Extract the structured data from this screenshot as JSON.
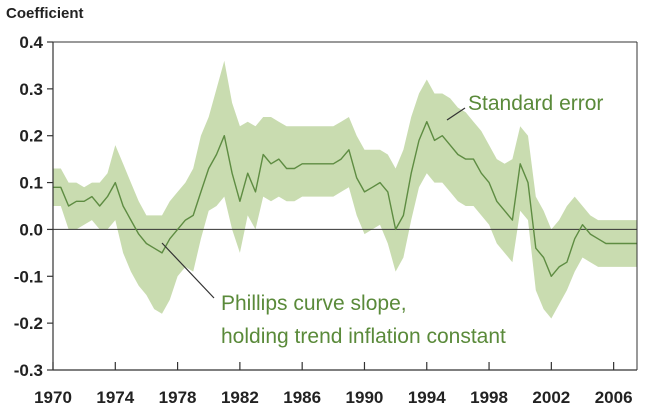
{
  "chart_data": {
    "type": "area",
    "ylabel": "Coefficient",
    "xlabel": "",
    "xlim": [
      1970,
      2007.5
    ],
    "ylim": [
      -0.3,
      0.4
    ],
    "x_ticks": [
      1970,
      1974,
      1978,
      1982,
      1986,
      1990,
      1994,
      1998,
      2002,
      2006
    ],
    "y_ticks": [
      0.4,
      0.3,
      0.2,
      0.1,
      0.0,
      -0.1,
      -0.2,
      -0.3
    ],
    "y_tick_labels": [
      "0.4",
      "0.3",
      "0.2",
      "0.1",
      "0.0",
      "-0.1",
      "-0.2",
      "-0.3"
    ],
    "grid": false,
    "zero_line": true,
    "colors": {
      "band": "#c9dcb0",
      "line": "#5e8c42",
      "annotation": "#5a8a3a",
      "axis": "#333333"
    },
    "annotations": [
      {
        "text": "Standard error",
        "target": "band"
      },
      {
        "text": "Phillips curve slope,",
        "target": "line"
      },
      {
        "text": "holding trend inflation constant",
        "target": "line"
      }
    ],
    "series": [
      {
        "x": [
          1970,
          1970.5,
          1971,
          1971.5,
          1972,
          1972.5,
          1973,
          1973.5,
          1974,
          1974.5,
          1975,
          1975.5,
          1976,
          1976.5,
          1977,
          1977.5,
          1978,
          1978.5,
          1979,
          1979.5,
          1980,
          1980.5,
          1981,
          1981.5,
          1982,
          1982.5,
          1983,
          1983.5,
          1984,
          1984.5,
          1985,
          1985.5,
          1986,
          1986.5,
          1987,
          1987.5,
          1988,
          1988.5,
          1989,
          1989.5,
          1990,
          1990.5,
          1991,
          1991.5,
          1992,
          1992.5,
          1993,
          1993.5,
          1994,
          1994.5,
          1995,
          1995.5,
          1996,
          1996.5,
          1997,
          1997.5,
          1998,
          1998.5,
          1999,
          1999.5,
          2000,
          2000.5,
          2001,
          2001.5,
          2002,
          2002.5,
          2003,
          2003.5,
          2004,
          2004.5,
          2005,
          2005.5,
          2006,
          2006.5,
          2007,
          2007.5
        ],
        "values": [
          0.09,
          0.09,
          0.05,
          0.06,
          0.06,
          0.07,
          0.05,
          0.07,
          0.1,
          0.05,
          0.02,
          -0.01,
          -0.03,
          -0.04,
          -0.05,
          -0.02,
          0.0,
          0.02,
          0.03,
          0.08,
          0.13,
          0.16,
          0.2,
          0.12,
          0.06,
          0.12,
          0.08,
          0.16,
          0.14,
          0.15,
          0.13,
          0.13,
          0.14,
          0.14,
          0.14,
          0.14,
          0.14,
          0.15,
          0.17,
          0.11,
          0.08,
          0.09,
          0.1,
          0.08,
          0.0,
          0.03,
          0.12,
          0.19,
          0.23,
          0.19,
          0.2,
          0.18,
          0.16,
          0.15,
          0.15,
          0.12,
          0.1,
          0.06,
          0.04,
          0.02,
          0.14,
          0.1,
          -0.04,
          -0.06,
          -0.1,
          -0.08,
          -0.07,
          -0.02,
          0.01,
          -0.01,
          -0.02,
          -0.03,
          -0.03,
          -0.03,
          -0.03,
          -0.03
        ],
        "upper": [
          0.13,
          0.13,
          0.1,
          0.1,
          0.09,
          0.1,
          0.1,
          0.12,
          0.18,
          0.14,
          0.1,
          0.06,
          0.03,
          0.03,
          0.03,
          0.06,
          0.08,
          0.1,
          0.13,
          0.2,
          0.24,
          0.3,
          0.36,
          0.27,
          0.22,
          0.23,
          0.22,
          0.24,
          0.24,
          0.23,
          0.22,
          0.22,
          0.22,
          0.22,
          0.22,
          0.22,
          0.22,
          0.23,
          0.24,
          0.2,
          0.17,
          0.17,
          0.17,
          0.16,
          0.13,
          0.17,
          0.24,
          0.29,
          0.32,
          0.29,
          0.29,
          0.28,
          0.26,
          0.25,
          0.23,
          0.21,
          0.18,
          0.15,
          0.14,
          0.15,
          0.22,
          0.2,
          0.07,
          0.04,
          0.0,
          0.02,
          0.05,
          0.07,
          0.05,
          0.03,
          0.02,
          0.02,
          0.02,
          0.02,
          0.02,
          0.02
        ],
        "lower": [
          0.05,
          0.05,
          0.0,
          0.0,
          0.01,
          0.02,
          0.0,
          0.0,
          0.02,
          -0.05,
          -0.09,
          -0.12,
          -0.14,
          -0.17,
          -0.18,
          -0.15,
          -0.1,
          -0.08,
          -0.09,
          -0.02,
          0.04,
          0.05,
          0.07,
          0.0,
          -0.05,
          0.03,
          0.0,
          0.07,
          0.06,
          0.07,
          0.06,
          0.06,
          0.07,
          0.07,
          0.07,
          0.07,
          0.07,
          0.08,
          0.09,
          0.03,
          -0.01,
          0.0,
          0.01,
          -0.03,
          -0.09,
          -0.06,
          0.02,
          0.09,
          0.12,
          0.1,
          0.1,
          0.08,
          0.06,
          0.05,
          0.05,
          0.03,
          0.01,
          -0.03,
          -0.05,
          -0.07,
          0.04,
          0.02,
          -0.13,
          -0.17,
          -0.19,
          -0.16,
          -0.13,
          -0.09,
          -0.06,
          -0.07,
          -0.08,
          -0.08,
          -0.08,
          -0.08,
          -0.08,
          -0.08
        ]
      }
    ]
  }
}
